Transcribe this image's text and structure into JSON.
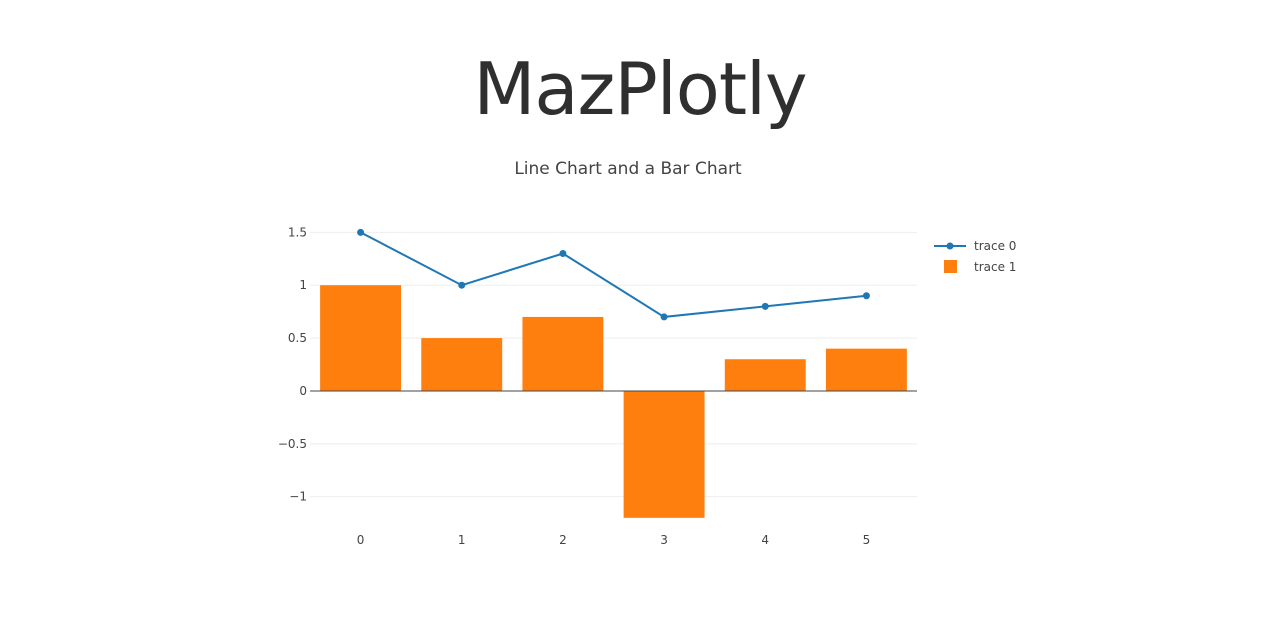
{
  "app": {
    "title": "MazPlotly"
  },
  "chart_data": {
    "type": "bar",
    "title": "Line Chart and a Bar Chart",
    "x": [
      0,
      1,
      2,
      3,
      4,
      5
    ],
    "xticks": [
      "0",
      "1",
      "2",
      "3",
      "4",
      "5"
    ],
    "yticks": [
      {
        "value": -1,
        "label": "−1"
      },
      {
        "value": -0.5,
        "label": "−0.5"
      },
      {
        "value": 0,
        "label": "0"
      },
      {
        "value": 0.5,
        "label": "0.5"
      },
      {
        "value": 1,
        "label": "1"
      },
      {
        "value": 1.5,
        "label": "1.5"
      }
    ],
    "ylim": [
      -1.23,
      1.56
    ],
    "grid": true,
    "legend_position": "top-right",
    "series": [
      {
        "name": "trace 0",
        "type": "line",
        "color": "#1f77b4",
        "values": [
          1.5,
          1.0,
          1.3,
          0.7,
          0.8,
          0.9
        ]
      },
      {
        "name": "trace 1",
        "type": "bar",
        "color": "#ff7f0e",
        "values": [
          1.0,
          0.5,
          0.7,
          -1.2,
          0.3,
          0.4
        ]
      }
    ]
  }
}
